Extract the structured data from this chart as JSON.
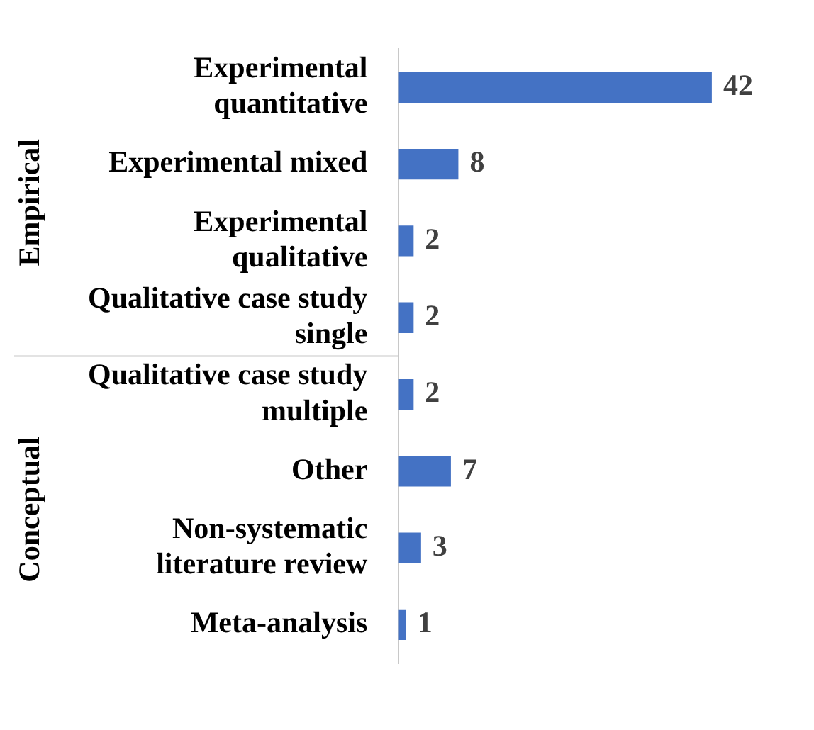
{
  "chart_data": {
    "type": "bar",
    "orientation": "horizontal",
    "categories": [
      "Experimental quantitative",
      "Experimental mixed",
      "Experimental qualitative",
      "Qualitative case study single",
      "Qualitative case study multiple",
      "Other",
      "Non-systematic literature review",
      "Meta-analysis"
    ],
    "values": [
      42,
      8,
      2,
      2,
      2,
      7,
      3,
      1
    ],
    "color": "#4472c4",
    "data_labels": true,
    "grid": false,
    "legend": false,
    "annotations": [
      "Empirical",
      "Conceptual"
    ]
  }
}
